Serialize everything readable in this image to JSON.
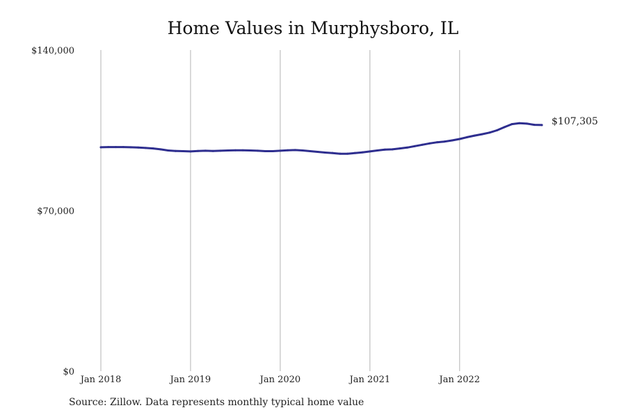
{
  "chart": {
    "title": "Home Values in Murphysboro, IL",
    "source": "Source: Zillow. Data represents monthly typical home value",
    "end_label": "$107,305",
    "line_color": "#2e2e8f",
    "grid_color": "#b3b3b3"
  },
  "chart_data": {
    "type": "line",
    "title": "Home Values in Murphysboro, IL",
    "xlabel": "",
    "ylabel": "",
    "x_ticks": [
      "Jan 2018",
      "Jan 2019",
      "Jan 2020",
      "Jan 2021",
      "Jan 2022"
    ],
    "y_ticks": [
      "$0",
      "$70,000",
      "$140,000"
    ],
    "ylim": [
      0,
      140000
    ],
    "grid": "vertical only",
    "x": [
      "2018-01",
      "2018-02",
      "2018-03",
      "2018-04",
      "2018-05",
      "2018-06",
      "2018-07",
      "2018-08",
      "2018-09",
      "2018-10",
      "2018-11",
      "2018-12",
      "2019-01",
      "2019-02",
      "2019-03",
      "2019-04",
      "2019-05",
      "2019-06",
      "2019-07",
      "2019-08",
      "2019-09",
      "2019-10",
      "2019-11",
      "2019-12",
      "2020-01",
      "2020-02",
      "2020-03",
      "2020-04",
      "2020-05",
      "2020-06",
      "2020-07",
      "2020-08",
      "2020-09",
      "2020-10",
      "2020-11",
      "2020-12",
      "2021-01",
      "2021-02",
      "2021-03",
      "2021-04",
      "2021-05",
      "2021-06",
      "2021-07",
      "2021-08",
      "2021-09",
      "2021-10",
      "2021-11",
      "2021-12",
      "2022-01",
      "2022-02",
      "2022-03",
      "2022-04",
      "2022-05",
      "2022-06",
      "2022-07",
      "2022-08",
      "2022-09",
      "2022-10",
      "2022-11",
      "2022-12"
    ],
    "series": [
      {
        "values": [
          97600,
          97700,
          97700,
          97700,
          97600,
          97500,
          97300,
          97100,
          96700,
          96200,
          96000,
          95900,
          95800,
          96000,
          96100,
          96000,
          96100,
          96200,
          96300,
          96300,
          96200,
          96100,
          95900,
          95900,
          96100,
          96300,
          96400,
          96200,
          95900,
          95600,
          95300,
          95100,
          94800,
          94800,
          95100,
          95400,
          95800,
          96200,
          96600,
          96700,
          97100,
          97500,
          98100,
          98700,
          99300,
          99800,
          100100,
          100600,
          101200,
          102000,
          102700,
          103300,
          104000,
          105000,
          106400,
          107700,
          108100,
          107900,
          107400,
          107305
        ]
      }
    ],
    "annotations": [
      "$107,305"
    ]
  }
}
